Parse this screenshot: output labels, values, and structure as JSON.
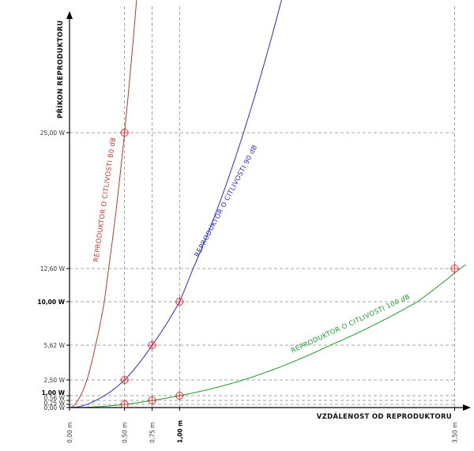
{
  "chart_data": {
    "type": "line",
    "xlabel": "VZDÁLENOST OD REPRODUKTORU",
    "ylabel": "PŘÍKON REPRODUKTORU",
    "x_ticks": [
      {
        "value": 0,
        "label": "0,00 m",
        "bold": false
      },
      {
        "value": 0.5,
        "label": "0,50 m",
        "bold": false
      },
      {
        "value": 0.75,
        "label": "0,75 m",
        "bold": false
      },
      {
        "value": 1.0,
        "label": "1,00 m",
        "bold": true
      },
      {
        "value": 3.5,
        "label": "3,50 m",
        "bold": false
      }
    ],
    "y_ticks": [
      {
        "value": 0,
        "label": "0,00 W",
        "bold": false
      },
      {
        "value": 0.25,
        "label": "0,25 W",
        "bold": false
      },
      {
        "value": 0.56,
        "label": "0,56 W",
        "bold": false
      },
      {
        "value": 1.0,
        "label": "1,00 W",
        "bold": true
      },
      {
        "value": 2.5,
        "label": "2,50 W",
        "bold": false
      },
      {
        "value": 5.62,
        "label": "5,62 W",
        "bold": false
      },
      {
        "value": 10.0,
        "label": "10,00 W",
        "bold": true
      },
      {
        "value": 12.6,
        "label": "12,60 W",
        "bold": false
      },
      {
        "value": 25.0,
        "label": "25,00 W",
        "bold": false
      }
    ],
    "xlim": [
      0,
      3.5
    ],
    "grid": true,
    "series": [
      {
        "name": "REPRODUKTOR  O CITLIVOSTI 80 dB",
        "color": "#c0392b",
        "coefficient": 100,
        "markers": [
          {
            "x": 0.5,
            "y": 25.0
          }
        ]
      },
      {
        "name": "REPRODUKTOR  O CITLIVOSTI 90 dB",
        "color": "#2b2bcc",
        "coefficient": 10,
        "markers": [
          {
            "x": 0.5,
            "y": 2.5
          },
          {
            "x": 0.75,
            "y": 5.62
          },
          {
            "x": 1.0,
            "y": 10.0
          }
        ]
      },
      {
        "name": "REPRODUKTOR  O CITLIVOSTI 100 dB",
        "color": "#1e9a2e",
        "coefficient": 1,
        "markers": [
          {
            "x": 0.5,
            "y": 0.25
          },
          {
            "x": 0.75,
            "y": 0.56
          },
          {
            "x": 1.0,
            "y": 1.0
          },
          {
            "x": 3.5,
            "y": 12.6
          }
        ]
      }
    ],
    "marker_color": "#e23b3b"
  }
}
